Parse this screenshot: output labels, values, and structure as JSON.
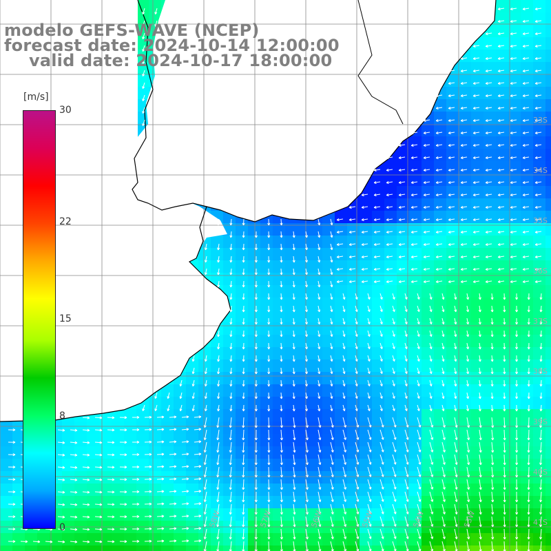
{
  "title": {
    "line1": "modelo GEFS-WAVE (NCEP)",
    "line2": "forecast date: 2024-10-14 12:00:00",
    "line3": "valid date: 2024-10-17 18:00:00"
  },
  "colorbar": {
    "unit": "[m/s]",
    "ticks": [
      "30",
      "22",
      "15",
      "8",
      "0"
    ],
    "tick_values": [
      30,
      22,
      15,
      8,
      0
    ],
    "colors": [
      "#0000ff",
      "#00aaff",
      "#00ffff",
      "#00ff66",
      "#00cc00",
      "#aaff00",
      "#ffff00",
      "#ffaa00",
      "#ff4400",
      "#ff0000",
      "#dd0055",
      "#bb1188"
    ]
  },
  "map": {
    "lat_labels": [
      "33S",
      "34S",
      "35S",
      "36S",
      "37S",
      "38S",
      "39S",
      "40S",
      "41S"
    ],
    "lon_labels": [
      "58W",
      "57W",
      "56W",
      "55W",
      "54W",
      "53W"
    ],
    "land_color": "#ffffff",
    "grid_color": "#888888",
    "coast_color": "#000000",
    "arrow_color": "#ffffff"
  }
}
